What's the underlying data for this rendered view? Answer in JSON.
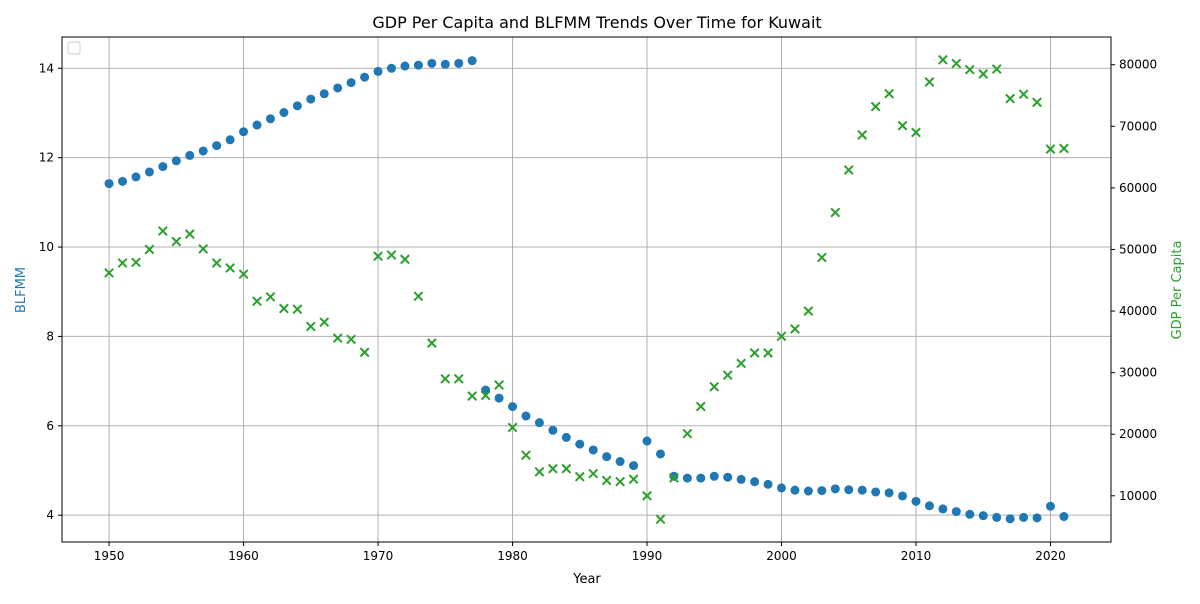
{
  "chart_data": {
    "type": "scatter",
    "title": "GDP Per Capita and BLFMM Trends Over Time for Kuwait",
    "xlabel": "Year",
    "ylabel_left": "BLFMM",
    "ylabel_right": "GDP Per Capita",
    "xlim": [
      1946.5,
      2024.5
    ],
    "ylim_left": [
      3.4,
      14.7
    ],
    "ylim_right": [
      2500,
      84500
    ],
    "x_ticks": [
      1950,
      1960,
      1970,
      1980,
      1990,
      2000,
      2010,
      2020
    ],
    "y_left_ticks": [
      4,
      6,
      8,
      10,
      12,
      14
    ],
    "y_right_ticks": [
      10000,
      20000,
      30000,
      40000,
      50000,
      60000,
      70000,
      80000
    ],
    "grid": true,
    "legend": "top-left",
    "colors": {
      "blfmm": "#1f77b4",
      "gdp": "#2ca02c"
    },
    "series": [
      {
        "key": "blfmm",
        "axis": "left",
        "marker": "circle",
        "x": [
          1950,
          1951,
          1952,
          1953,
          1954,
          1955,
          1956,
          1957,
          1958,
          1959,
          1960,
          1961,
          1962,
          1963,
          1964,
          1965,
          1966,
          1967,
          1968,
          1969,
          1970,
          1971,
          1972,
          1973,
          1974,
          1975,
          1976,
          1977,
          1978,
          1979,
          1980,
          1981,
          1982,
          1983,
          1984,
          1985,
          1986,
          1987,
          1988,
          1989,
          1990,
          1991,
          1992,
          1993,
          1994,
          1995,
          1996,
          1997,
          1998,
          1999,
          2000,
          2001,
          2002,
          2003,
          2004,
          2005,
          2006,
          2007,
          2008,
          2009,
          2010,
          2011,
          2012,
          2013,
          2014,
          2015,
          2016,
          2017,
          2018,
          2019,
          2020,
          2021
        ],
        "y": [
          11.42,
          11.47,
          11.57,
          11.68,
          11.8,
          11.93,
          12.05,
          12.15,
          12.27,
          12.4,
          12.58,
          12.73,
          12.87,
          13.01,
          13.16,
          13.31,
          13.43,
          13.56,
          13.68,
          13.8,
          13.93,
          14.0,
          14.05,
          14.07,
          14.11,
          14.09,
          14.11,
          14.17,
          6.8,
          6.62,
          6.43,
          6.22,
          6.07,
          5.9,
          5.74,
          5.59,
          5.46,
          5.31,
          5.2,
          5.11,
          5.66,
          5.37,
          4.87,
          4.83,
          4.83,
          4.87,
          4.85,
          4.8,
          4.75,
          4.69,
          4.61,
          4.56,
          4.54,
          4.55,
          4.59,
          4.57,
          4.56,
          4.52,
          4.5,
          4.43,
          4.31,
          4.21,
          4.14,
          4.08,
          4.02,
          3.99,
          3.95,
          3.92,
          3.95,
          3.94,
          4.2,
          3.97
        ]
      },
      {
        "key": "gdp",
        "axis": "right",
        "marker": "x",
        "x": [
          1950,
          1951,
          1952,
          1953,
          1954,
          1955,
          1956,
          1957,
          1958,
          1959,
          1960,
          1961,
          1962,
          1963,
          1964,
          1965,
          1966,
          1967,
          1968,
          1969,
          1970,
          1971,
          1972,
          1973,
          1974,
          1975,
          1976,
          1977,
          1978,
          1979,
          1980,
          1981,
          1982,
          1983,
          1984,
          1985,
          1986,
          1987,
          1988,
          1989,
          1990,
          1991,
          1992,
          1993,
          1994,
          1995,
          1996,
          1997,
          1998,
          1999,
          2000,
          2001,
          2002,
          2003,
          2004,
          2005,
          2006,
          2007,
          2008,
          2009,
          2010,
          2011,
          2012,
          2013,
          2014,
          2015,
          2016,
          2017,
          2018,
          2019,
          2020,
          2021
        ],
        "y": [
          46200,
          47800,
          47900,
          50000,
          53000,
          51300,
          52500,
          50100,
          47800,
          47000,
          46000,
          41600,
          42300,
          40400,
          40300,
          37500,
          38200,
          35600,
          35400,
          33300,
          48900,
          49100,
          48400,
          42400,
          34800,
          29000,
          29000,
          26200,
          26300,
          28000,
          21100,
          16600,
          13900,
          14400,
          14400,
          13100,
          13600,
          12500,
          12300,
          12700,
          10000,
          6200,
          12900,
          20100,
          24500,
          27700,
          29600,
          31500,
          33200,
          33200,
          35900,
          37100,
          40000,
          48700,
          56000,
          62900,
          68600,
          73200,
          75300,
          70100,
          69000,
          77200,
          80800,
          80200,
          79200,
          78500,
          79300,
          74500,
          75200,
          73900,
          66300,
          66400
        ]
      }
    ]
  }
}
